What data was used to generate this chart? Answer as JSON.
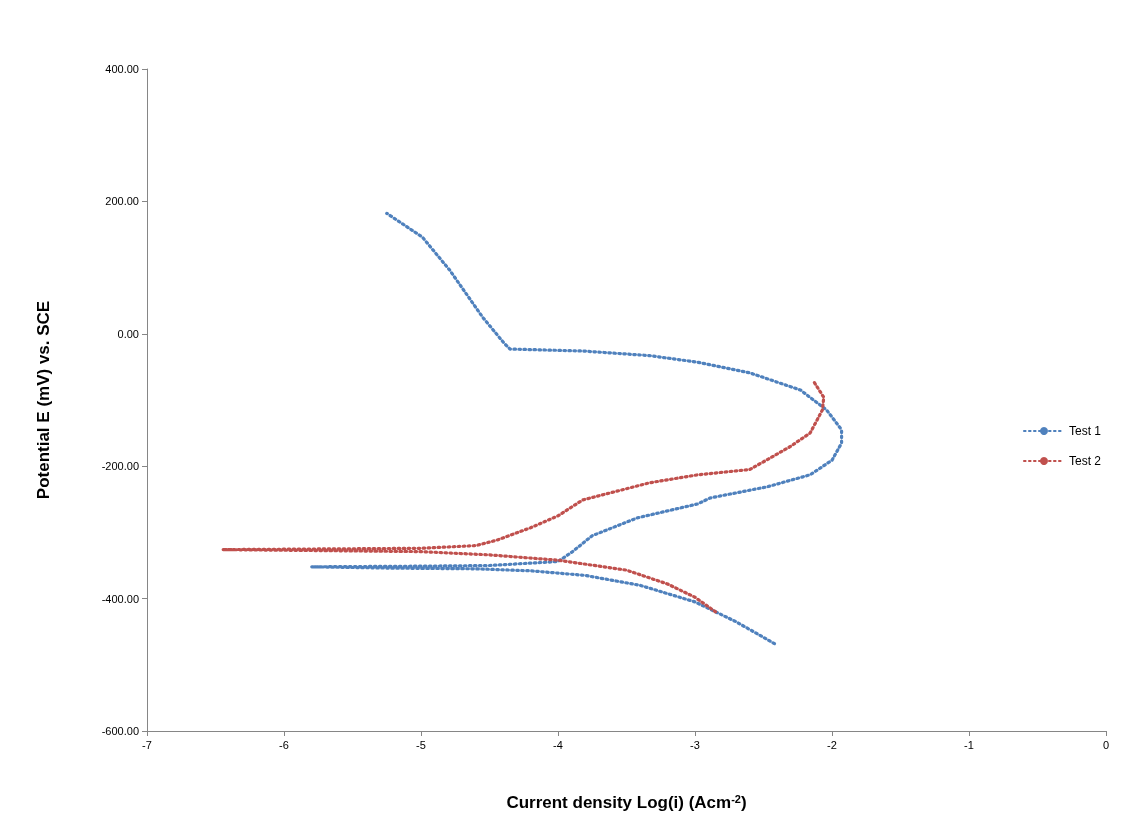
{
  "chart_data": {
    "type": "line",
    "xlabel": "Current density Log(i) (Acm$^{-2}$)",
    "ylabel": "Potential E (mV) vs. SCE",
    "xlim": [
      -7,
      0
    ],
    "xticks": [
      -7,
      -6,
      -5,
      -4,
      -3,
      -2,
      -1,
      0
    ],
    "ylim": [
      -600,
      400
    ],
    "yticks": [
      {
        "value": -600,
        "label": "-600.00"
      },
      {
        "value": -400,
        "label": "-400.00"
      },
      {
        "value": -200,
        "label": "-200.00"
      },
      {
        "value": 0,
        "label": "0.00"
      },
      {
        "value": 200,
        "label": "200.00"
      },
      {
        "value": 400,
        "label": "400.00"
      }
    ],
    "grid": false,
    "legend": "right",
    "marker": "none",
    "line_style": "dotted",
    "series": [
      {
        "name": "Test 1",
        "color": "#4f81bd",
        "x": [
          -2.42,
          -2.7,
          -3.0,
          -3.4,
          -3.8,
          -4.2,
          -4.6,
          -5.2,
          -5.8,
          -5.0,
          -4.5,
          -4.0,
          -3.9,
          -3.75,
          -3.42,
          -2.98,
          -2.89,
          -2.47,
          -2.16,
          -2.0,
          -1.93,
          -1.93,
          -2.04,
          -2.23,
          -2.6,
          -2.98,
          -3.33,
          -3.82,
          -4.35,
          -4.39,
          -4.55,
          -4.79,
          -4.99,
          -5.25
        ],
        "values": [
          -468,
          -435,
          -405,
          -380,
          -365,
          -358,
          -355,
          -354,
          -352,
          -351,
          -350,
          -344,
          -330,
          -305,
          -278,
          -257,
          -248,
          -231,
          -213,
          -191,
          -165,
          -145,
          -115,
          -85,
          -59,
          -43,
          -33,
          -26,
          -23,
          -15,
          25,
          96,
          146,
          182
        ]
      },
      {
        "name": "Test 2",
        "color": "#c0504d",
        "x": [
          -2.85,
          -3.0,
          -3.2,
          -3.5,
          -4.0,
          -4.5,
          -5.0,
          -6.45,
          -5.0,
          -4.6,
          -4.45,
          -4.2,
          -4.0,
          -3.82,
          -3.33,
          -2.98,
          -2.6,
          -2.31,
          -2.16,
          -2.07,
          -2.06,
          -2.14
        ],
        "values": [
          -420,
          -398,
          -378,
          -357,
          -342,
          -334,
          -329,
          -326,
          -324,
          -320,
          -312,
          -293,
          -275,
          -251,
          -225,
          -213,
          -205,
          -171,
          -150,
          -115,
          -96,
          -70
        ]
      }
    ]
  }
}
